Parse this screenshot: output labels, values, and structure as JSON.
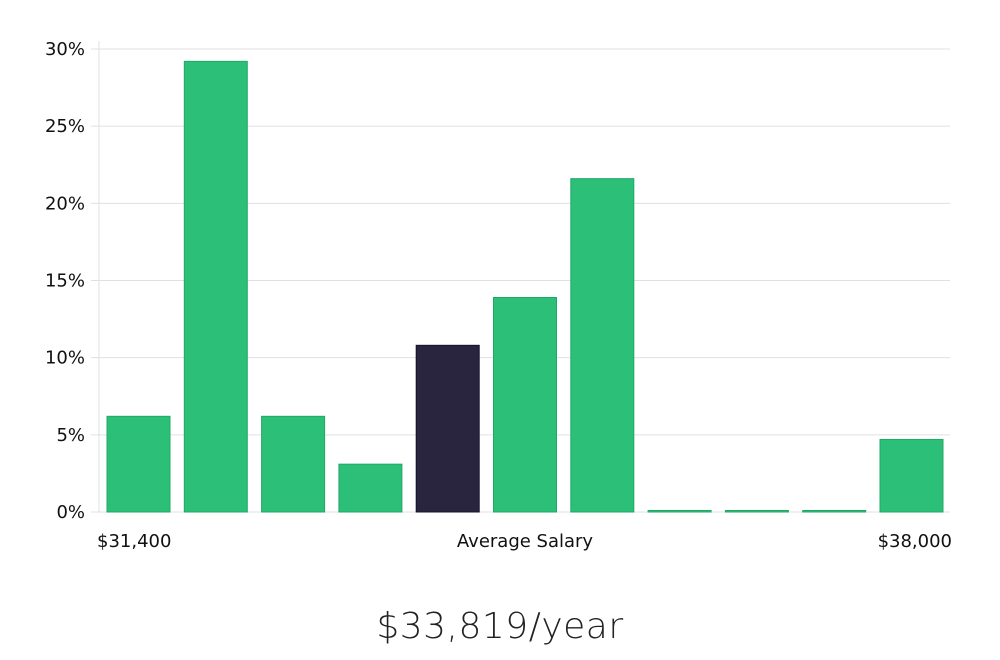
{
  "colors": {
    "bar": "#2bbf77",
    "highlight": "#29253f",
    "grid": "#e0e0e0",
    "text": "#111111"
  },
  "salary_caption": "$33,819/year",
  "chart_data": {
    "type": "bar",
    "title": "",
    "xlabel": "Average Salary",
    "ylabel": "",
    "x_min_label": "$31,400",
    "x_max_label": "$38,000",
    "ylim": [
      0,
      30
    ],
    "y_ticks": [
      0,
      5,
      10,
      15,
      20,
      25,
      30
    ],
    "y_tick_labels": [
      "0%",
      "5%",
      "10%",
      "15%",
      "20%",
      "25%",
      "30%"
    ],
    "values": [
      6.2,
      29.2,
      6.2,
      3.1,
      10.8,
      13.9,
      21.6,
      0,
      0,
      0,
      4.7
    ],
    "highlight_index": 4,
    "grid": true
  }
}
